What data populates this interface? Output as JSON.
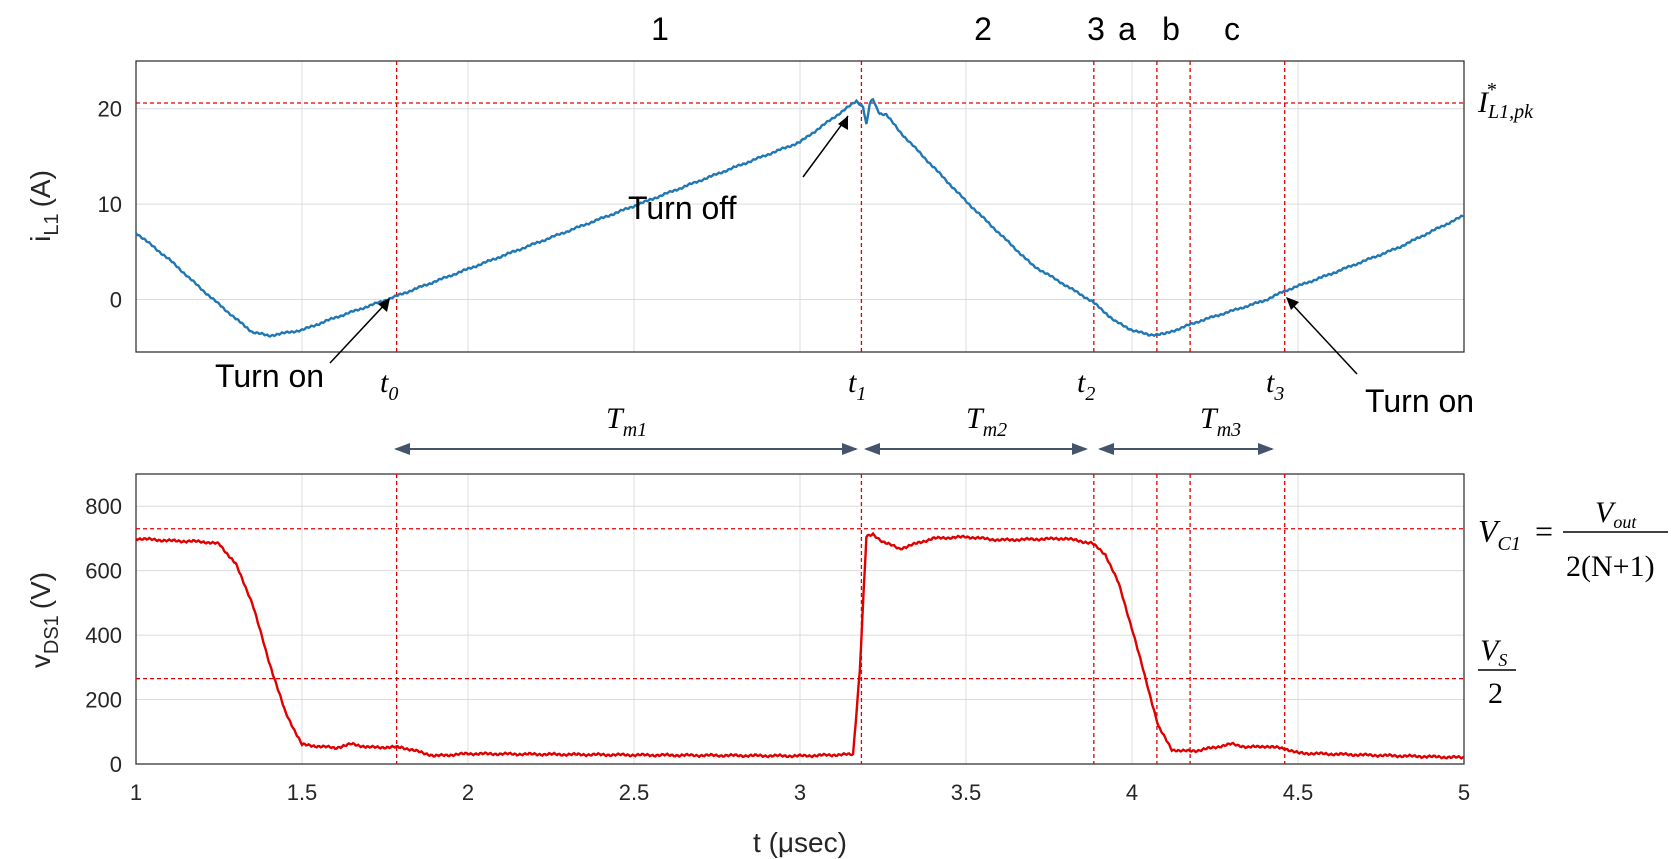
{
  "regions": [
    "1",
    "2",
    "3",
    "a",
    "b",
    "c"
  ],
  "chart_data": [
    {
      "type": "line",
      "ylabel_main": "i",
      "ylabel_sub": "L1",
      "ylabel_unit": "(A)",
      "xlim": [
        1,
        5
      ],
      "ylim": [
        -5.5,
        25
      ],
      "yticks": [
        "0",
        "10",
        "20"
      ],
      "reference_y": 20.6,
      "reference_label": {
        "main": "I",
        "sup": "*",
        "sub": "L1,pk"
      },
      "series": [
        {
          "color": "#1f77b4",
          "x": [
            1.0,
            1.1,
            1.2,
            1.3,
            1.35,
            1.4,
            1.5,
            1.6,
            1.7,
            1.78,
            2.0,
            2.5,
            3.0,
            3.17,
            3.19,
            3.2,
            3.21,
            3.22,
            3.23,
            3.24,
            3.26,
            3.3,
            3.5,
            3.7,
            3.88,
            3.95,
            4.0,
            4.05,
            4.1,
            4.2,
            4.3,
            4.4,
            4.46,
            4.6,
            4.8,
            5.0
          ],
          "y": [
            7.0,
            4.2,
            1.0,
            -2.0,
            -3.4,
            -3.8,
            -3.2,
            -1.9,
            -0.7,
            0.3,
            3.2,
            9.8,
            16.5,
            20.8,
            20.2,
            18.3,
            20.5,
            21.0,
            20.1,
            19.5,
            19.4,
            17.6,
            10.3,
            3.6,
            -0.2,
            -2.3,
            -3.2,
            -3.7,
            -3.6,
            -2.3,
            -1.2,
            -0.1,
            0.9,
            2.7,
            5.4,
            8.8
          ]
        }
      ],
      "annotations": [
        {
          "text": "Turn off"
        },
        {
          "text": "Turn on"
        },
        {
          "text": "Turn on"
        }
      ]
    },
    {
      "type": "line",
      "ylabel_main": "v",
      "ylabel_sub": "DS1",
      "ylabel_unit": "(V)",
      "xlabel": "t (μsec)",
      "xlim": [
        1,
        5
      ],
      "ylim": [
        0,
        900
      ],
      "xticks": [
        "1",
        "1.5",
        "2",
        "2.5",
        "3",
        "3.5",
        "4",
        "4.5",
        "5"
      ],
      "yticks": [
        "0",
        "200",
        "400",
        "600",
        "800"
      ],
      "reference_lines_y": [
        730,
        265
      ],
      "series": [
        {
          "color": "#e00000",
          "x": [
            1.0,
            1.1,
            1.2,
            1.25,
            1.3,
            1.35,
            1.4,
            1.45,
            1.5,
            1.6,
            1.65,
            1.7,
            1.8,
            1.9,
            2.0,
            2.5,
            3.0,
            3.16,
            3.18,
            3.2,
            3.22,
            3.25,
            3.3,
            3.4,
            3.5,
            3.6,
            3.8,
            3.88,
            3.92,
            3.96,
            4.0,
            4.05,
            4.08,
            4.12,
            4.15,
            4.2,
            4.3,
            4.35,
            4.4,
            4.46,
            4.5,
            4.7,
            5.0
          ],
          "y": [
            700,
            693,
            690,
            683,
            622,
            500,
            320,
            160,
            60,
            50,
            62,
            52,
            52,
            25,
            32,
            28,
            25,
            30,
            290,
            705,
            712,
            690,
            668,
            700,
            705,
            695,
            700,
            685,
            650,
            560,
            420,
            230,
            115,
            45,
            40,
            42,
            62,
            52,
            55,
            48,
            34,
            28,
            20
          ]
        }
      ]
    }
  ],
  "time_labels": [
    {
      "main": "t",
      "sub": "0"
    },
    {
      "main": "t",
      "sub": "1"
    },
    {
      "main": "t",
      "sub": "2"
    },
    {
      "main": "t",
      "sub": "3"
    }
  ],
  "intervals": [
    {
      "main": "T",
      "sub": "m1"
    },
    {
      "main": "T",
      "sub": "m2"
    },
    {
      "main": "T",
      "sub": "m3"
    }
  ],
  "vc1_label": {
    "lhs_main": "V",
    "lhs_sub": "C1",
    "eq": "=",
    "num": "V",
    "num_sub": "out",
    "den": "2(N+1)"
  },
  "vs_label": {
    "num": "V",
    "num_sub": "S",
    "den": "2"
  }
}
